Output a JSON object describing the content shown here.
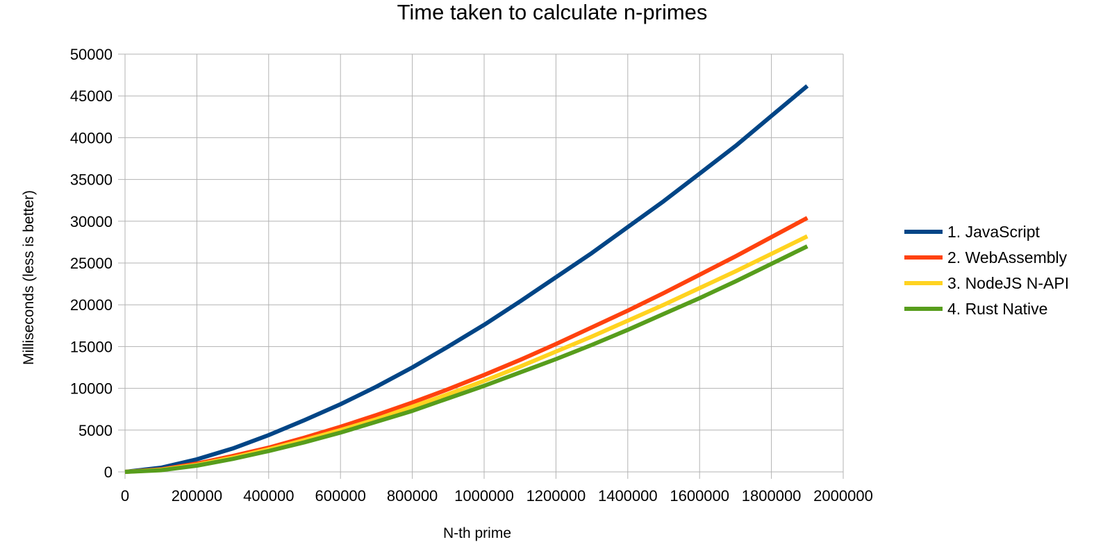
{
  "chart_data": {
    "type": "line",
    "title": "Time taken to calculate n-primes",
    "xlabel": "N-th prime",
    "ylabel": "Milliseconds (less is better)",
    "xlim": [
      0,
      2000000
    ],
    "ylim": [
      0,
      50000
    ],
    "x_ticks": [
      0,
      200000,
      400000,
      600000,
      800000,
      1000000,
      1200000,
      1400000,
      1600000,
      1800000,
      2000000
    ],
    "y_ticks": [
      0,
      5000,
      10000,
      15000,
      20000,
      25000,
      30000,
      35000,
      40000,
      45000,
      50000
    ],
    "grid": true,
    "legend_position": "right",
    "x": [
      0,
      100000,
      200000,
      300000,
      400000,
      500000,
      600000,
      700000,
      800000,
      900000,
      1000000,
      1100000,
      1200000,
      1300000,
      1400000,
      1500000,
      1600000,
      1700000,
      1800000,
      1900000
    ],
    "series": [
      {
        "name": "1. JavaScript",
        "color": "#004586",
        "values": [
          0,
          500,
          1500,
          2800,
          4400,
          6200,
          8100,
          10200,
          12500,
          15000,
          17600,
          20400,
          23300,
          26200,
          29300,
          32400,
          35700,
          39000,
          42600,
          46200
        ]
      },
      {
        "name": "2. WebAssembly",
        "color": "#ff420e",
        "values": [
          0,
          300,
          1000,
          1900,
          2900,
          4100,
          5400,
          6800,
          8300,
          9900,
          11600,
          13400,
          15300,
          17300,
          19300,
          21400,
          23600,
          25800,
          28100,
          30400
        ]
      },
      {
        "name": "3. NodeJS N-API",
        "color": "#ffd320",
        "values": [
          0,
          250,
          850,
          1700,
          2700,
          3800,
          5000,
          6300,
          7800,
          9300,
          10900,
          12600,
          14400,
          16200,
          18100,
          20000,
          22000,
          24000,
          26100,
          28200
        ]
      },
      {
        "name": "4. Rust Native",
        "color": "#579d1c",
        "values": [
          0,
          200,
          750,
          1550,
          2500,
          3550,
          4700,
          6000,
          7300,
          8800,
          10300,
          11900,
          13500,
          15200,
          17000,
          18900,
          20800,
          22800,
          24900,
          27000
        ]
      }
    ]
  }
}
